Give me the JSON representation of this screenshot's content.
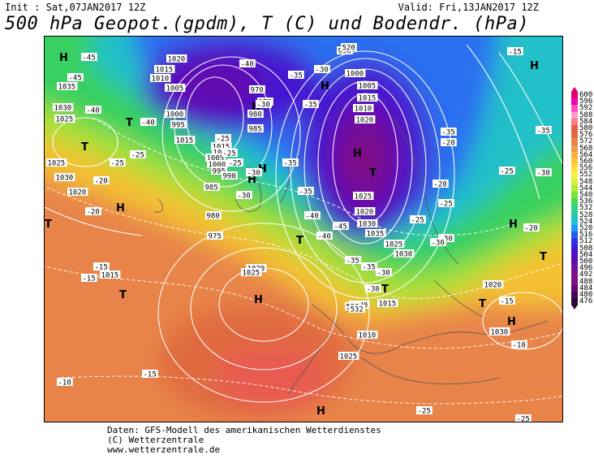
{
  "header": {
    "init": "Init : Sat,07JAN2017 12Z",
    "valid": "Valid: Fri,13JAN2017 12Z",
    "title": "500 hPa Geopot.(gpdm), T (C) und Bodendr. (hPa)"
  },
  "legend": {
    "labels": [
      "600",
      "596",
      "592",
      "588",
      "584",
      "580",
      "576",
      "572",
      "568",
      "564",
      "560",
      "556",
      "552",
      "548",
      "544",
      "540",
      "536",
      "532",
      "528",
      "524",
      "520",
      "516",
      "512",
      "508",
      "504",
      "500",
      "496",
      "492",
      "488",
      "484",
      "480",
      "476"
    ],
    "colors": [
      "#e0006a",
      "#f000b0",
      "#ff50c0",
      "#ff9ec8",
      "#ff7f7f",
      "#e85c50",
      "#e06a40",
      "#e8844a",
      "#f09a50",
      "#f8b040",
      "#ffc830",
      "#ffe040",
      "#f8f040",
      "#d8f040",
      "#a8ec38",
      "#78e438",
      "#40dc50",
      "#30d088",
      "#28c8b0",
      "#20c0d8",
      "#2098f0",
      "#2060f0",
      "#3030e8",
      "#3c18d0",
      "#5010c0",
      "#6010a8",
      "#7010a0",
      "#801090",
      "#801080",
      "#600c70",
      "#480858",
      "#2c0838"
    ]
  },
  "map_labels": {
    "high_pressure": [
      "H",
      "H",
      "H",
      "H",
      "H",
      "H",
      "H",
      "H",
      "H",
      "H",
      "H",
      "H"
    ],
    "low_pressure": [
      "T",
      "T",
      "T",
      "T",
      "T",
      "T",
      "T",
      "T",
      "T"
    ],
    "pressure_values": [
      "1020",
      "1015",
      "1010",
      "1005",
      "1035",
      "1030",
      "1025",
      "1000",
      "995",
      "1015",
      "1025",
      "1030",
      "1020",
      "1015",
      "1010",
      "1005",
      "1000",
      "995",
      "990",
      "985",
      "980",
      "975",
      "970",
      "975",
      "980",
      "985",
      "990",
      "1000",
      "1005",
      "1015",
      "1010",
      "1020",
      "1025",
      "1020",
      "1030",
      "1035",
      "1025",
      "1030",
      "1020",
      "1015",
      "1010",
      "1025",
      "1020",
      "1030",
      "1020",
      "1025",
      "1015"
    ],
    "temperature_values": [
      "-45",
      "-45",
      "-40",
      "-40",
      "-40",
      "-35",
      "-35",
      "-30",
      "-30",
      "-25",
      "-25",
      "-20",
      "-20",
      "-15",
      "-15",
      "-15",
      "-10",
      "-25",
      "-25",
      "-25",
      "-30",
      "-30",
      "-35",
      "-35",
      "-40",
      "-40",
      "-45",
      "-35",
      "-35",
      "-30",
      "-30",
      "-25",
      "-25",
      "-20",
      "-20",
      "-15",
      "-35",
      "-30",
      "-25",
      "-20",
      "-15",
      "-10",
      "-25",
      "-30",
      "-35",
      "-30",
      "-25"
    ],
    "gpdm_values": [
      "520",
      "552",
      "532"
    ]
  },
  "footer": {
    "line1": "Daten: GFS-Modell des amerikanischen Wetterdienstes",
    "line2": "(C) Wetterzentrale",
    "line3": "www.wetterzentrale.de"
  }
}
